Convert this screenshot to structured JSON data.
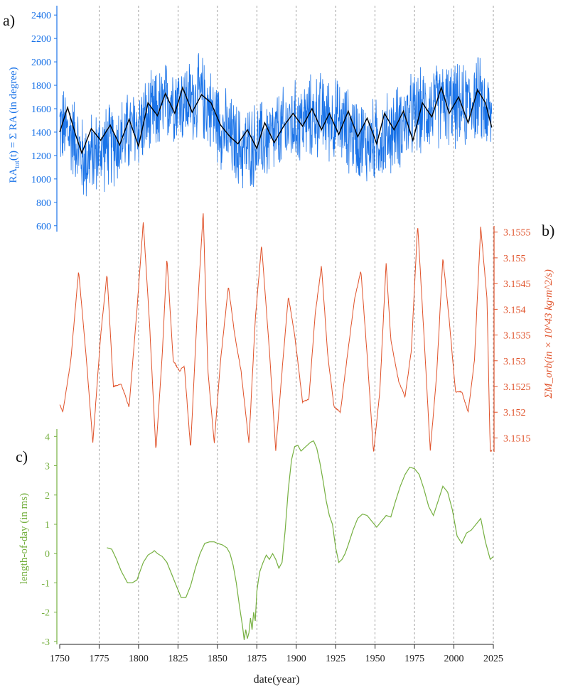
{
  "colors": {
    "a": "#1a73e8",
    "a_fit": "#000000",
    "b": "#e0522a",
    "c": "#76b041",
    "grid": "#7a7a7a",
    "axis": "#222222"
  },
  "x_axis": {
    "label": "date(year)",
    "range": [
      1750,
      2025
    ],
    "ticks": [
      "1750",
      "1775",
      "1800",
      "1825",
      "1850",
      "1875",
      "1900",
      "1925",
      "1950",
      "1975",
      "2000",
      "2025"
    ],
    "vlines": [
      1775,
      1800,
      1825,
      1850,
      1875,
      1900,
      1925,
      1950,
      1975,
      2000,
      2025
    ]
  },
  "chart_data": [
    {
      "panel": "a)",
      "type": "line",
      "ylabel_parts": [
        "RA",
        "tot",
        "(t) = Σ RA  (in degree)"
      ],
      "ylim": [
        550,
        2480
      ],
      "yticks": [
        "600",
        "800",
        "1000",
        "1200",
        "1400",
        "1600",
        "1800",
        "2000",
        "2200",
        "2400"
      ],
      "series": [
        {
          "role": "data",
          "noise": "high-frequency",
          "x_range": [
            1750,
            2024
          ],
          "amplitude": 320,
          "envelope_x": [
            1750,
            1760,
            1765,
            1775,
            1785,
            1795,
            1805,
            1815,
            1820,
            1830,
            1840,
            1850,
            1855,
            1865,
            1875,
            1885,
            1895,
            1905,
            1915,
            1925,
            1935,
            1945,
            1955,
            1965,
            1975,
            1985,
            1995,
            2005,
            2015,
            2024
          ],
          "envelope_y": [
            1450,
            1350,
            1150,
            1250,
            1300,
            1400,
            1500,
            1600,
            1700,
            1650,
            1700,
            1500,
            1400,
            1250,
            1300,
            1350,
            1450,
            1500,
            1550,
            1500,
            1400,
            1300,
            1350,
            1450,
            1550,
            1600,
            1650,
            1600,
            1700,
            1500
          ]
        },
        {
          "role": "fit",
          "x": [
            1750,
            1755,
            1760,
            1764,
            1770,
            1776,
            1782,
            1788,
            1794,
            1800,
            1806,
            1812,
            1817,
            1823,
            1828,
            1834,
            1840,
            1846,
            1852,
            1858,
            1863,
            1869,
            1875,
            1880,
            1886,
            1892,
            1898,
            1904,
            1910,
            1916,
            1921,
            1927,
            1933,
            1939,
            1945,
            1951,
            1956,
            1962,
            1968,
            1974,
            1980,
            1986,
            1992,
            1997,
            2003,
            2009,
            2015,
            2020,
            2024
          ],
          "y": [
            1400,
            1610,
            1380,
            1220,
            1430,
            1330,
            1460,
            1290,
            1510,
            1280,
            1650,
            1540,
            1730,
            1560,
            1780,
            1570,
            1720,
            1650,
            1460,
            1360,
            1300,
            1420,
            1260,
            1480,
            1310,
            1450,
            1560,
            1450,
            1600,
            1420,
            1560,
            1380,
            1580,
            1360,
            1520,
            1300,
            1560,
            1420,
            1580,
            1330,
            1650,
            1530,
            1780,
            1560,
            1700,
            1480,
            1760,
            1650,
            1440
          ]
        }
      ]
    },
    {
      "panel": "b)",
      "type": "line",
      "ylabel": "ΣM_orb(in × 10^43 kg·m^2/s)",
      "ylim": [
        3.15123,
        3.15562
      ],
      "yticks": [
        "3.1515",
        "3.152",
        "3.1525",
        "3.153",
        "3.1535",
        "3.154",
        "3.1545",
        "3.155",
        "3.1555"
      ],
      "series": [
        {
          "x": [
            1750,
            1752,
            1757,
            1762,
            1767,
            1771,
            1776,
            1780,
            1784,
            1789,
            1794,
            1799,
            1803,
            1807,
            1811,
            1815,
            1818,
            1822,
            1826,
            1829,
            1833,
            1837,
            1841,
            1844,
            1848,
            1852,
            1857,
            1861,
            1865,
            1870,
            1874,
            1878,
            1883,
            1887,
            1891,
            1895,
            1899,
            1904,
            1908,
            1912,
            1916,
            1920,
            1924,
            1928,
            1932,
            1937,
            1941,
            1945,
            1949,
            1953,
            1957,
            1960,
            1965,
            1969,
            1973,
            1977,
            1981,
            1985,
            1989,
            1993,
            1997,
            2001,
            2005,
            2009,
            2013,
            2017,
            2021,
            2023,
            2024
          ],
          "y": [
            3.15215,
            3.152,
            3.153,
            3.15475,
            3.153,
            3.1514,
            3.1535,
            3.1547,
            3.1525,
            3.15255,
            3.1521,
            3.154,
            3.1557,
            3.1537,
            3.15125,
            3.1531,
            3.155,
            3.153,
            3.1528,
            3.1529,
            3.1513,
            3.1538,
            3.1559,
            3.1528,
            3.1514,
            3.153,
            3.15445,
            3.1535,
            3.1528,
            3.1514,
            3.1538,
            3.15525,
            3.1532,
            3.15125,
            3.1528,
            3.15425,
            3.1535,
            3.1522,
            3.15225,
            3.1539,
            3.15485,
            3.1531,
            3.1521,
            3.152,
            3.153,
            3.1542,
            3.15475,
            3.1531,
            3.1512,
            3.1524,
            3.1549,
            3.1534,
            3.1526,
            3.1523,
            3.1532,
            3.15565,
            3.1535,
            3.15125,
            3.1527,
            3.155,
            3.1538,
            3.1524,
            3.1524,
            3.152,
            3.153,
            3.1556,
            3.1542,
            3.15125,
            3.15125
          ]
        }
      ]
    },
    {
      "panel": "c)",
      "type": "line",
      "ylabel": "length-of-day (in ms)",
      "ylim": [
        -3.1,
        4.25
      ],
      "yticks": [
        "-3",
        "-2",
        "-1",
        "0",
        "1",
        "2",
        "3",
        "4"
      ],
      "series": [
        {
          "x": [
            1780,
            1783,
            1786,
            1789,
            1793,
            1796,
            1799,
            1801,
            1803,
            1806,
            1809,
            1810,
            1812,
            1815,
            1818,
            1821,
            1824,
            1827,
            1830,
            1833,
            1836,
            1839,
            1842,
            1845,
            1848,
            1850,
            1853,
            1856,
            1858,
            1860,
            1862,
            1864,
            1866,
            1867,
            1868,
            1869,
            1870,
            1871,
            1872,
            1873,
            1874,
            1875,
            1876,
            1877,
            1879,
            1881,
            1883,
            1885,
            1887,
            1889,
            1891,
            1893,
            1895,
            1897,
            1899,
            1901,
            1903,
            1905,
            1907,
            1909,
            1911,
            1913,
            1915,
            1917,
            1919,
            1921,
            1923,
            1925,
            1927,
            1929,
            1931,
            1933,
            1936,
            1939,
            1942,
            1945,
            1948,
            1951,
            1954,
            1957,
            1960,
            1963,
            1966,
            1969,
            1972,
            1975,
            1978,
            1981,
            1984,
            1987,
            1990,
            1993,
            1996,
            1999,
            2002,
            2005,
            2008,
            2011,
            2014,
            2017,
            2020,
            2023,
            2025
          ],
          "y": [
            0.2,
            0.15,
            -0.2,
            -0.6,
            -1.0,
            -1.0,
            -0.9,
            -0.6,
            -0.3,
            -0.05,
            0.05,
            0.1,
            0.0,
            -0.1,
            -0.3,
            -0.7,
            -1.1,
            -1.5,
            -1.5,
            -1.1,
            -0.5,
            0.0,
            0.35,
            0.4,
            0.4,
            0.35,
            0.3,
            0.2,
            0.0,
            -0.4,
            -1.0,
            -1.8,
            -2.5,
            -2.95,
            -2.6,
            -2.9,
            -2.7,
            -2.2,
            -2.6,
            -2.0,
            -2.3,
            -1.3,
            -0.9,
            -0.6,
            -0.3,
            -0.05,
            -0.2,
            0.0,
            -0.2,
            -0.5,
            -0.3,
            0.8,
            2.2,
            3.2,
            3.65,
            3.7,
            3.5,
            3.6,
            3.7,
            3.8,
            3.85,
            3.6,
            3.1,
            2.5,
            1.8,
            1.3,
            1.0,
            0.2,
            -0.3,
            -0.2,
            0.0,
            0.3,
            0.8,
            1.2,
            1.35,
            1.3,
            1.1,
            0.9,
            1.1,
            1.3,
            1.25,
            1.8,
            2.3,
            2.7,
            2.95,
            2.9,
            2.7,
            2.2,
            1.6,
            1.3,
            1.8,
            2.3,
            2.1,
            1.5,
            0.6,
            0.35,
            0.7,
            0.8,
            1.0,
            1.2,
            0.4,
            -0.2,
            -0.1
          ]
        }
      ]
    }
  ]
}
